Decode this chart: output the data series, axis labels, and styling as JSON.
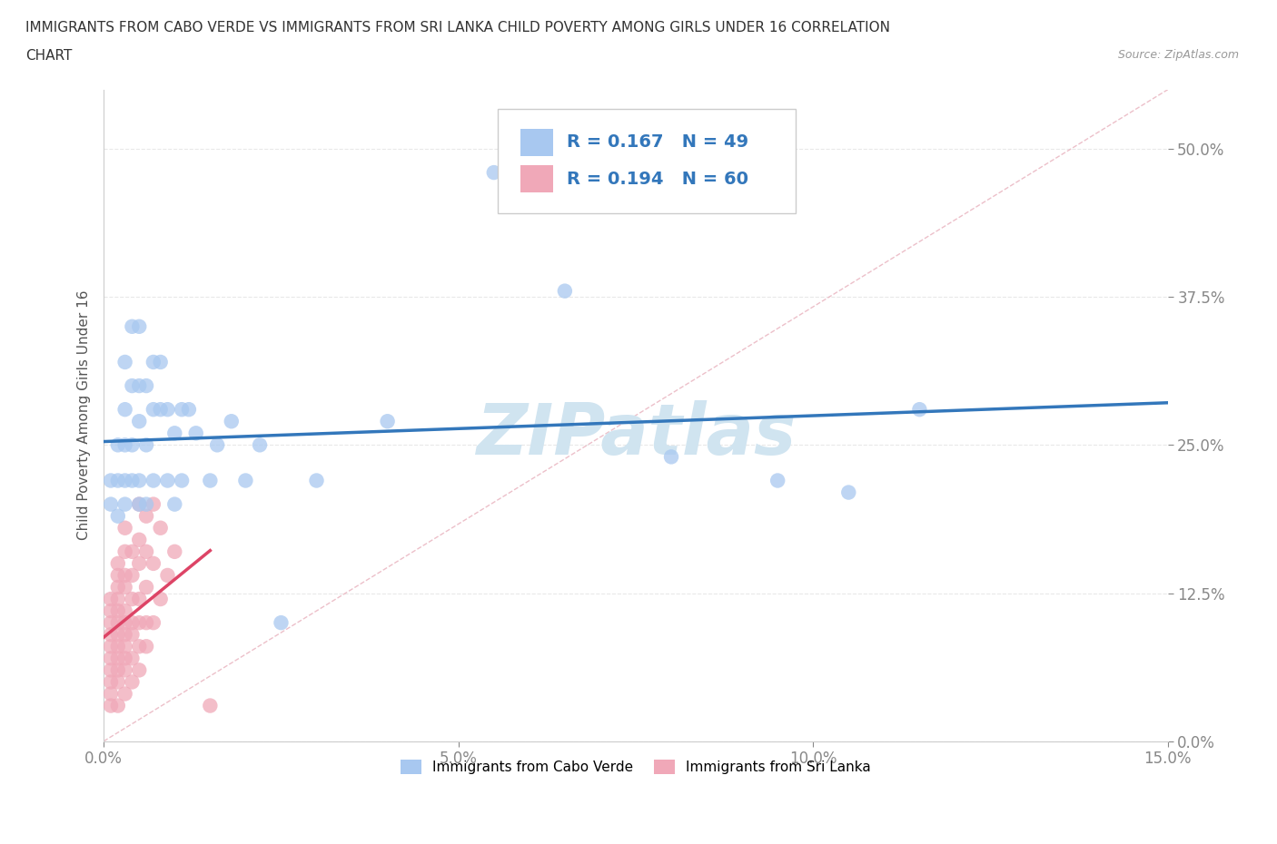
{
  "title_line1": "IMMIGRANTS FROM CABO VERDE VS IMMIGRANTS FROM SRI LANKA CHILD POVERTY AMONG GIRLS UNDER 16 CORRELATION",
  "title_line2": "CHART",
  "source": "Source: ZipAtlas.com",
  "ylabel": "Child Poverty Among Girls Under 16",
  "xlim": [
    0.0,
    0.15
  ],
  "ylim": [
    0.0,
    0.55
  ],
  "yticks": [
    0.0,
    0.125,
    0.25,
    0.375,
    0.5
  ],
  "ytick_labels": [
    "0.0%",
    "12.5%",
    "25.0%",
    "37.5%",
    "50.0%"
  ],
  "xticks": [
    0.0,
    0.05,
    0.1,
    0.15
  ],
  "xtick_labels": [
    "0.0%",
    "5.0%",
    "10.0%",
    "15.0%"
  ],
  "cabo_verde_color": "#a8c8f0",
  "sri_lanka_color": "#f0a8b8",
  "cabo_verde_trend_color": "#3377bb",
  "sri_lanka_trend_color": "#dd4466",
  "diagonal_color": "#e8b0bc",
  "R_cabo": 0.167,
  "N_cabo": 49,
  "R_sri": 0.194,
  "N_sri": 60,
  "cabo_verde_x": [
    0.001,
    0.001,
    0.002,
    0.002,
    0.002,
    0.003,
    0.003,
    0.003,
    0.003,
    0.003,
    0.004,
    0.004,
    0.004,
    0.004,
    0.005,
    0.005,
    0.005,
    0.005,
    0.005,
    0.006,
    0.006,
    0.006,
    0.007,
    0.007,
    0.007,
    0.008,
    0.008,
    0.009,
    0.009,
    0.01,
    0.01,
    0.011,
    0.011,
    0.012,
    0.013,
    0.015,
    0.016,
    0.018,
    0.02,
    0.022,
    0.025,
    0.03,
    0.04,
    0.055,
    0.065,
    0.08,
    0.095,
    0.105,
    0.115
  ],
  "cabo_verde_y": [
    0.2,
    0.22,
    0.19,
    0.22,
    0.25,
    0.2,
    0.22,
    0.25,
    0.28,
    0.32,
    0.22,
    0.25,
    0.3,
    0.35,
    0.2,
    0.22,
    0.27,
    0.3,
    0.35,
    0.2,
    0.25,
    0.3,
    0.22,
    0.28,
    0.32,
    0.28,
    0.32,
    0.22,
    0.28,
    0.2,
    0.26,
    0.22,
    0.28,
    0.28,
    0.26,
    0.22,
    0.25,
    0.27,
    0.22,
    0.25,
    0.1,
    0.22,
    0.27,
    0.48,
    0.38,
    0.24,
    0.22,
    0.21,
    0.28
  ],
  "sri_lanka_x": [
    0.001,
    0.001,
    0.001,
    0.001,
    0.001,
    0.001,
    0.001,
    0.001,
    0.001,
    0.001,
    0.002,
    0.002,
    0.002,
    0.002,
    0.002,
    0.002,
    0.002,
    0.002,
    0.002,
    0.002,
    0.002,
    0.002,
    0.003,
    0.003,
    0.003,
    0.003,
    0.003,
    0.003,
    0.003,
    0.003,
    0.003,
    0.003,
    0.003,
    0.004,
    0.004,
    0.004,
    0.004,
    0.004,
    0.004,
    0.004,
    0.005,
    0.005,
    0.005,
    0.005,
    0.005,
    0.005,
    0.005,
    0.006,
    0.006,
    0.006,
    0.006,
    0.006,
    0.007,
    0.007,
    0.007,
    0.008,
    0.008,
    0.009,
    0.01,
    0.015
  ],
  "sri_lanka_y": [
    0.03,
    0.04,
    0.05,
    0.06,
    0.07,
    0.08,
    0.09,
    0.1,
    0.11,
    0.12,
    0.03,
    0.05,
    0.06,
    0.07,
    0.08,
    0.09,
    0.1,
    0.11,
    0.12,
    0.13,
    0.14,
    0.15,
    0.04,
    0.06,
    0.07,
    0.08,
    0.09,
    0.1,
    0.11,
    0.13,
    0.14,
    0.16,
    0.18,
    0.05,
    0.07,
    0.09,
    0.1,
    0.12,
    0.14,
    0.16,
    0.06,
    0.08,
    0.1,
    0.12,
    0.15,
    0.17,
    0.2,
    0.08,
    0.1,
    0.13,
    0.16,
    0.19,
    0.1,
    0.15,
    0.2,
    0.12,
    0.18,
    0.14,
    0.16,
    0.03
  ],
  "watermark": "ZIPatlas",
  "watermark_color": "#d0e4f0",
  "background_color": "#ffffff",
  "grid_color": "#e8e8e8"
}
